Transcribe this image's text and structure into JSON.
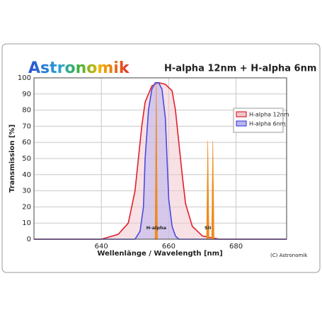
{
  "chart_data": {
    "type": "line",
    "brand": "Astronomik",
    "title": "H-alpha 12nm + H-alpha 6nm",
    "xlabel": "Wellenlänge / Wavelength [nm]",
    "ylabel": "Transmission [%]",
    "credit": "(C) Astronomik",
    "xlim": [
      620,
      695
    ],
    "xticks": [
      640,
      660,
      680
    ],
    "ylim": [
      0,
      100
    ],
    "yticks": [
      0,
      10,
      20,
      30,
      40,
      50,
      60,
      70,
      80,
      90,
      100
    ],
    "grid": true,
    "legend": "upper right",
    "series": [
      {
        "name": "H-alpha 12nm",
        "color": "#e0202a",
        "fill": "#f2c8cf",
        "x": [
          620,
          640,
          645,
          648,
          650,
          651,
          652,
          653,
          655,
          657,
          659,
          661,
          662,
          663,
          664,
          665,
          667,
          670,
          675,
          695
        ],
        "values": [
          0,
          0,
          3,
          10,
          30,
          50,
          70,
          85,
          95,
          97,
          96,
          92,
          80,
          60,
          40,
          22,
          8,
          2,
          0,
          0
        ]
      },
      {
        "name": "H-alpha 6nm",
        "color": "#4a4ae0",
        "fill": "#b8b4f0",
        "x": [
          620,
          650,
          651.5,
          652.5,
          653,
          654,
          655,
          656,
          657,
          658,
          659,
          659.5,
          660,
          661,
          662,
          663,
          695
        ],
        "values": [
          0,
          0,
          5,
          20,
          50,
          80,
          93,
          97,
          97,
          93,
          75,
          50,
          25,
          8,
          2,
          0,
          0
        ]
      }
    ],
    "emission_lines": [
      {
        "label": "H-alpha",
        "color": "#f08a1c",
        "x": [
          656.3
        ],
        "values": [
          97
        ]
      },
      {
        "label": "SII",
        "color": "#f08a1c",
        "x": [
          671.6,
          673.1
        ],
        "values": [
          61,
          61
        ]
      }
    ]
  }
}
